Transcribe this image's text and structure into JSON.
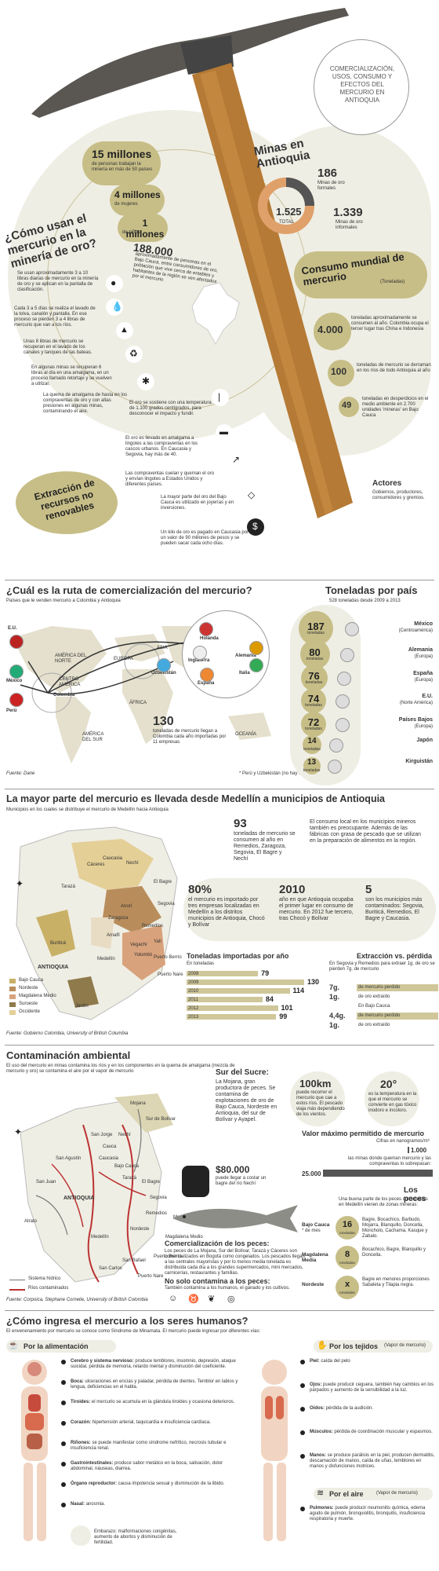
{
  "hero": {
    "title_badge": "COMERCIALIZACIÓN, USOS, CONSUMO Y EFECTOS DEL MERCURIO EN ANTIOQUIA",
    "question": "¿Cómo usan el mercurio en la minería de oro?",
    "stat1_big": "15 millones",
    "stat1_small": "de personas trabajan la minería en más de 50 países",
    "stat2_big": "4 millones",
    "stat2_small": "de mujeres",
    "stat3_big": "1 millones",
    "stat3_small": "de niños",
    "stat4_big": "188.000",
    "stat4_small": "aproximadamente de personas en el Bajo Cauca, entre consumidores de oro, población que vive cerca de entables y habitantes de la región se ven afectados por el mercurio",
    "steps": [
      "Se usan aproximadamente 3 a 10 libras diarias de mercurio en la minería de oro y se aplican en la pantalla de clasificación.",
      "Cada 3 a 5 días se realiza el lavado de la tolva, canalón y pantalla. En ese proceso se pierden 3 a 4 libras de mercurio que van a los ríos.",
      "Unas 8 libras de mercurio se recuperan en el lavado de los canales y tanques de las bateas.",
      "En algunas minas se recuperan 6 libras al día en una amalgama, en un proceso llamado retortaje y se vuelven a utilizar.",
      "La quema de amalgama de hasta en los compraventas de oro y con altas presiones en algunas minas, contaminando el aire.",
      "El oro se sostiene con una temperatura de 1.100 grados centígrados, para desconocer el impacto y fundir.",
      "El oro es llevado en amalgama a lingotes a las compraventas en los cascos urbanos. En Caucasia y Segovia, hay más de 40.",
      "Las compraventas cuelan y queman el oro y envían lingotes a Estados Unidos y diferentes países.",
      "La mayor parte del oro del Bajo Cauca es utilizado en joyerías y en inversiones.",
      "Un kilo de oro es pagado en Caucasia por un valor de 90 millones de pesos y se pueden sacar cada ocho días."
    ],
    "extraction_label": "Extracción de recursos no renovables",
    "mines_title": "Minas en Antioquia",
    "mines_formal_value": "186",
    "mines_formal_label": "Minas de oro formales",
    "mines_total_value": "1.525",
    "mines_total_label": "TOTAL",
    "mines_informal_value": "1.339",
    "mines_informal_label": "Minas de oro informales",
    "consumo_title": "Consumo mundial de mercurio",
    "consumo_unit": "(Toneladas)",
    "consumo1_value": "4.000",
    "consumo1_label": "toneladas aproximadamente se consumen al año. Colombia ocupa el tercer lugar tras China e Indonesia",
    "consumo2_value": "100",
    "consumo2_label": "toneladas de mercurio se derraman en los ríos de todo Antioquia al año",
    "consumo3_value": "49",
    "consumo3_label": "toneladas en desperdicios en el medio ambiente en 2.700 unidades 'mineras' en Bajo Cauca",
    "actores_title": "Actores",
    "actores_text": "Gobiernos, productores, consumidores y gremios."
  },
  "ruta": {
    "title": "¿Cuál es la ruta de comercialización del mercurio?",
    "subtitle": "Países que le venden mercurio a Colombia y Antioquia",
    "map_labels": [
      "E.U.",
      "AMÉRICA DEL NORTE",
      "CENTRO AMÉRICA",
      "México",
      "Colombia",
      "Perú",
      "AMÉRICA DEL SUR",
      "EUROPA",
      "ASIA",
      "Uzbekistán",
      "ÁFRICA",
      "OCEANÍA",
      "Holanda",
      "Inglaterra",
      "Alemania",
      "Italia",
      "España"
    ],
    "stat_value": "130",
    "stat_text": "toneladas de mercurio llegan a Colombia cada año importadas por 11 empresas",
    "footnote": "* Perú y Uzbekistán (no hay informe)",
    "source": "Fuente: Dane"
  },
  "toneladas": {
    "title": "Toneladas por país",
    "subtitle": "528 toneladas desde 2009 a 2013",
    "items": [
      {
        "value": "187",
        "unit": "toneladas",
        "country": "México",
        "region": "(Centroamérica)"
      },
      {
        "value": "80",
        "unit": "toneladas",
        "country": "Alemania",
        "region": "(Europa)"
      },
      {
        "value": "76",
        "unit": "toneladas",
        "country": "España",
        "region": "(Europa)"
      },
      {
        "value": "74",
        "unit": "toneladas",
        "country": "E.U.",
        "region": "(Norte América)"
      },
      {
        "value": "72",
        "unit": "toneladas",
        "country": "Países Bajos",
        "region": "(Europa)"
      },
      {
        "value": "14",
        "unit": "toneladas",
        "country": "Japón",
        "region": ""
      },
      {
        "value": "13",
        "unit": "toneladas",
        "country": "Kirguistán",
        "region": ""
      }
    ]
  },
  "medellin": {
    "title": "La mayor parte del mercurio es llevada desde Medellín a municipios de Antioquia",
    "subtitle": "Municipios en los cuales se distribuye el mercurio de Medellín hacia Antioquia",
    "map_labels": [
      "Cáceres",
      "Caucasia",
      "Nechí",
      "El Bagre",
      "Tarazá",
      "Segovia",
      "Zaragoza",
      "Anorí",
      "Remedios",
      "Amalfi",
      "Vegachí",
      "Yalí",
      "Yolombó",
      "Puerto Berrío",
      "Puerto Nare",
      "Buriticá",
      "Medellín",
      "ANTIOQUIA",
      "Jardín"
    ],
    "legend": [
      "Bajo Cauca",
      "Nordeste",
      "Magdalena Medio",
      "Suroeste",
      "Occidente"
    ],
    "legend_colors": [
      "#c9b067",
      "#b98d5b",
      "#d8a27c",
      "#8f7a4c",
      "#e4cf97"
    ],
    "source": "Fuente: Gobierno Colombia, University of British Columbia",
    "stat93_value": "93",
    "stat93_text": "toneladas de mercurio se consumen al año en Remedios, Zaragoza, Segovia, El Bagre y Nechí",
    "local_text": "El consumo local en los municipios mineros también es preocupante. Además de las fábricas con grasa de pescado que se utilizan en la preparación de alimentos en la región.",
    "stat80_value": "80%",
    "stat80_text": "el mercurio es importado por tres empresas localizadas en Medellín a los distritos municipios de Antioquia, Chocó y Bolívar",
    "stat2010_value": "2010",
    "stat2010_text": "año en que Antioquia ocupaba el primer lugar en consumo de mercurio. En 2012 fue tercero, tras Chocó y Bolívar",
    "stat5_value": "5",
    "stat5_text": "son los municipios más contaminados: Segovia, Buriticá, Remedios, El Bagre y Caucasia.",
    "imported_title": "Toneladas importadas por año",
    "imported_unit": "En toneladas",
    "extraction_title": "Extracción vs. pérdida",
    "extraction_text": "En Segovia y Remedios para extraer 1g. de oro se pierden 7g. de mercurio",
    "ext_rows": [
      {
        "left": "7g.",
        "right": "de mercurio perdido"
      },
      {
        "left": "1g.",
        "right": "de oro extraído"
      },
      {
        "left": "",
        "right": "En Bajo Cauca:"
      },
      {
        "left": "4,4g.",
        "right": "de mercurio perdido"
      },
      {
        "left": "1g.",
        "right": "de oro extraído"
      }
    ]
  },
  "contaminacion": {
    "title": "Contaminación ambiental",
    "subtitle": "El uso del mercurio en minas contamina los ríos y en los componentes en la quema de amalgama (mezcla de mercurio y oro) se contamina el aire por el vapor de mercurio",
    "sur_title": "Sur del Sucre:",
    "sur_text": "La Mojana, gran productora de peces. Se contamina de explotaciones de oro de Bajo Cauca, Nordeste en Antioquia, del sur de Bolívar y Ayapel.",
    "map_labels": [
      "Mojana",
      "Sur de Bolívar",
      "Nechí",
      "San Jorge",
      "Cauca",
      "Caucasia",
      "Bajo Cauca",
      "Tarazá",
      "El Bagre",
      "Segovia",
      "ANTIOQUIA",
      "Remedios",
      "Nordeste",
      "Medellín",
      "Magdalena Medio",
      "San Juan",
      "Puerto Berrío",
      "Puerto Nare",
      "Atrato",
      "San Agustín",
      "San Carlos",
      "San Rafael",
      "Magdalena"
    ],
    "legend": [
      "Sistema hídrico",
      "Ríos contaminados"
    ],
    "source": "Fuente: Corpoica, Stephane Cornelie, University of British Colombia",
    "price_value": "$80.000",
    "price_text": "puede llegar a costar un bagre del río Nechí",
    "stat100_value": "100km",
    "stat100_text": "puede recorrer el mercurio que cae a estos ríos. El pescado viaja más dependiendo de los vientos.",
    "stat20_value": "20°",
    "stat20_text": "es la temperatura en la que el mercurio se convierte en gas tóxico inodoro e incoloro.",
    "max_title": "Valor máximo permitido de mercurio",
    "max_sub": "Cifras en nanogramos/m³",
    "max1_value": "1.000",
    "max1_text": "las minas donde queman mercurio y las compraventas lo sobrepasan:",
    "max2_value": "25.000",
    "peces_title": "Comercialización de los peces:",
    "peces_text": "Los peces de La Mojana, Sur del Bolívar, Tarazá y Cáceres son comercializados en Bogotá como congelados. Los pescados llegan a las centrales mayoristas y por lo menos media tonelada es distribuida cada día a los grandes supermercados, mini mercados, carnicerías, restaurantes y familias.",
    "no_solo_title": "No solo contamina a los peces:",
    "no_solo_text": "También contamina a los humanos, el ganado y los cultivos.",
    "los_peces_title": "Los peces",
    "los_peces_sub": "Una buena parte de los peces consumidos en Medellín vienen de zonas mineras:",
    "fish_rows": [
      {
        "region": "Bajo Cauca",
        "note": "* de mes",
        "value": "16",
        "unit": "toneladas",
        "species": "Bagre, Bocachico, Barbudo, Mojarra, Blanquillo, Doncella, Moncholo, Cachama, Kasque y Zabalo."
      },
      {
        "region": "Magdalena Media",
        "note": "",
        "value": "8",
        "unit": "toneladas",
        "species": "Bocachico, Bagre, Blanquillo y Doncella."
      },
      {
        "region": "Nordeste",
        "note": "",
        "value": "x",
        "unit": "toneladas",
        "species": "Bagre en menores proporciones Sabaleta y Tilapia negra."
      }
    ]
  },
  "humanos": {
    "title": "¿Cómo ingresa el mercurio a los seres humanos?",
    "subtitle": "El envenenamiento por mercurio se conoce como Síndrome de Minamata. El mercurio puede ingresar por diferentes vías:",
    "food_label": "Por la alimentación",
    "food_items": [
      {
        "organ": "Cerebro y sistema nervioso:",
        "text": "produce temblores, insomnio, depresión, ataque suicidal, pérdida de memoria, retardo mental y disminución del coeficiente."
      },
      {
        "organ": "Boca:",
        "text": "ulceraciones en encías y paladar, pérdida de dientes. Temblor en labios y lengua, deficiencias en el habla."
      },
      {
        "organ": "Tiroides:",
        "text": "el mercurio se acumula en la glándula tiroides y ocasiona deterioros."
      },
      {
        "organ": "Corazón:",
        "text": "hipertensión arterial, taquicardia e insuficiencia cardíaca."
      },
      {
        "organ": "Riñones:",
        "text": "se puede manifestar como síndrome nefrítico, necrosis tubular e insuficiencia renal."
      },
      {
        "organ": "Gastrointestinales:",
        "text": "produce sabor metálico en la boca, salivación, dolor abdominal, náuseas, diarrea."
      },
      {
        "organ": "Órgano reproductor:",
        "text": "causa impotencia sexual y disminución de la libido."
      },
      {
        "organ": "Nasal:",
        "text": "anosmia."
      }
    ],
    "embarazo": "Embarazo: malformaciones congénitas, aumento de abortos y disminución de fertilidad.",
    "tissue_label": "Por los tejidos",
    "tissue_note": "(Vapor de mercurio)",
    "tissue_items": [
      {
        "organ": "Piel:",
        "text": "caída del pelo"
      },
      {
        "organ": "Ojos:",
        "text": "puede producir ceguera, también hay cambios en los párpados y aumento de la sensibilidad a la luz."
      },
      {
        "organ": "Oídos:",
        "text": "pérdida de la audición."
      },
      {
        "organ": "Músculos:",
        "text": "pérdida de coordinación muscular y espasmos."
      },
      {
        "organ": "Manos:",
        "text": "se produce parálisis en la piel, producen dermatitis, descamación de manos, caída de uñas, temblores en manos y disfunciones motrices."
      }
    ],
    "air_label": "Por el aire",
    "air_note": "(Vapor de mercurio)",
    "air_items": [
      {
        "organ": "Pulmones:",
        "text": "puede producir neumonitis química, edema agudo de pulmón, bronquiolitis, bronquitis, insuficiencia respiratoria y muerte."
      }
    ]
  },
  "chart_data": {
    "type": "bar",
    "title": "Toneladas importadas por año",
    "ylabel": "En toneladas",
    "categories": [
      "2008",
      "2009",
      "2010",
      "2011",
      "2012",
      "2013"
    ],
    "values": [
      79,
      130,
      114,
      84,
      101,
      99
    ],
    "xlim": [
      0,
      130
    ],
    "orientation": "horizontal",
    "color": "#cfc79a"
  }
}
